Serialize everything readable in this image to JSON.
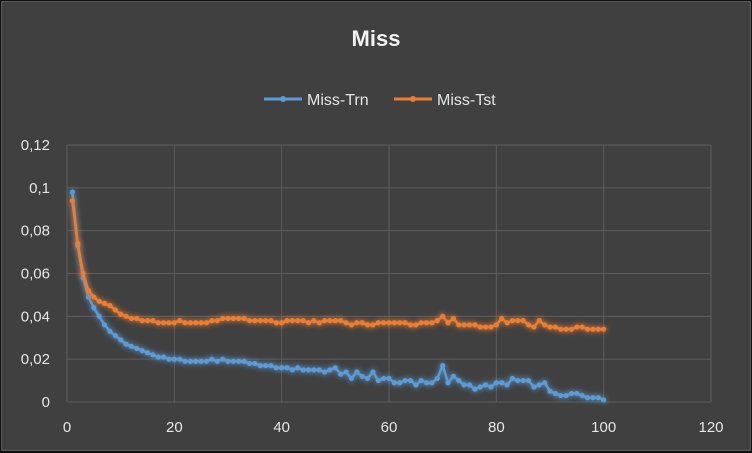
{
  "chart_data": {
    "type": "line",
    "title": "Miss",
    "xlabel": "",
    "ylabel": "",
    "xlim": [
      0,
      120
    ],
    "ylim": [
      0,
      0.12
    ],
    "x_ticks": [
      "0",
      "20",
      "40",
      "60",
      "80",
      "100",
      "120"
    ],
    "y_ticks": [
      "0",
      "0,02",
      "0,04",
      "0,06",
      "0,08",
      "0,1",
      "0,12"
    ],
    "grid": true,
    "legend_position": "top-center",
    "x": [
      1,
      2,
      3,
      4,
      5,
      6,
      7,
      8,
      9,
      10,
      11,
      12,
      13,
      14,
      15,
      16,
      17,
      18,
      19,
      20,
      21,
      22,
      23,
      24,
      25,
      26,
      27,
      28,
      29,
      30,
      31,
      32,
      33,
      34,
      35,
      36,
      37,
      38,
      39,
      40,
      41,
      42,
      43,
      44,
      45,
      46,
      47,
      48,
      49,
      50,
      51,
      52,
      53,
      54,
      55,
      56,
      57,
      58,
      59,
      60,
      61,
      62,
      63,
      64,
      65,
      66,
      67,
      68,
      69,
      70,
      71,
      72,
      73,
      74,
      75,
      76,
      77,
      78,
      79,
      80,
      81,
      82,
      83,
      84,
      85,
      86,
      87,
      88,
      89,
      90,
      91,
      92,
      93,
      94,
      95,
      96,
      97,
      98,
      99,
      100
    ],
    "series": [
      {
        "name": "Miss-Trn",
        "color": "#5b9bd5",
        "values": [
          0.098,
          0.073,
          0.058,
          0.049,
          0.044,
          0.04,
          0.036,
          0.033,
          0.031,
          0.029,
          0.027,
          0.026,
          0.025,
          0.024,
          0.023,
          0.022,
          0.021,
          0.021,
          0.02,
          0.02,
          0.02,
          0.019,
          0.019,
          0.019,
          0.019,
          0.019,
          0.02,
          0.019,
          0.02,
          0.019,
          0.019,
          0.019,
          0.019,
          0.018,
          0.018,
          0.017,
          0.017,
          0.017,
          0.016,
          0.016,
          0.016,
          0.015,
          0.016,
          0.015,
          0.015,
          0.015,
          0.015,
          0.014,
          0.015,
          0.016,
          0.013,
          0.014,
          0.011,
          0.014,
          0.012,
          0.011,
          0.014,
          0.01,
          0.011,
          0.011,
          0.009,
          0.009,
          0.01,
          0.01,
          0.008,
          0.01,
          0.009,
          0.009,
          0.011,
          0.017,
          0.009,
          0.012,
          0.01,
          0.008,
          0.008,
          0.006,
          0.007,
          0.008,
          0.007,
          0.009,
          0.009,
          0.008,
          0.011,
          0.01,
          0.01,
          0.01,
          0.007,
          0.008,
          0.009,
          0.005,
          0.004,
          0.003,
          0.003,
          0.004,
          0.004,
          0.003,
          0.002,
          0.002,
          0.002,
          0.001
        ]
      },
      {
        "name": "Miss-Tst",
        "color": "#ed7d31",
        "values": [
          0.094,
          0.074,
          0.06,
          0.052,
          0.049,
          0.047,
          0.046,
          0.045,
          0.043,
          0.041,
          0.04,
          0.039,
          0.039,
          0.038,
          0.038,
          0.038,
          0.037,
          0.037,
          0.037,
          0.037,
          0.038,
          0.037,
          0.037,
          0.037,
          0.037,
          0.037,
          0.038,
          0.038,
          0.039,
          0.039,
          0.039,
          0.039,
          0.039,
          0.038,
          0.038,
          0.038,
          0.038,
          0.038,
          0.037,
          0.037,
          0.038,
          0.038,
          0.038,
          0.038,
          0.037,
          0.038,
          0.037,
          0.038,
          0.038,
          0.038,
          0.038,
          0.037,
          0.036,
          0.037,
          0.037,
          0.036,
          0.036,
          0.037,
          0.037,
          0.037,
          0.037,
          0.037,
          0.037,
          0.036,
          0.036,
          0.037,
          0.037,
          0.037,
          0.038,
          0.04,
          0.037,
          0.039,
          0.036,
          0.036,
          0.036,
          0.036,
          0.035,
          0.035,
          0.035,
          0.036,
          0.039,
          0.037,
          0.038,
          0.038,
          0.038,
          0.036,
          0.035,
          0.038,
          0.036,
          0.035,
          0.035,
          0.034,
          0.034,
          0.034,
          0.035,
          0.035,
          0.034,
          0.034,
          0.034,
          0.034
        ]
      }
    ]
  }
}
